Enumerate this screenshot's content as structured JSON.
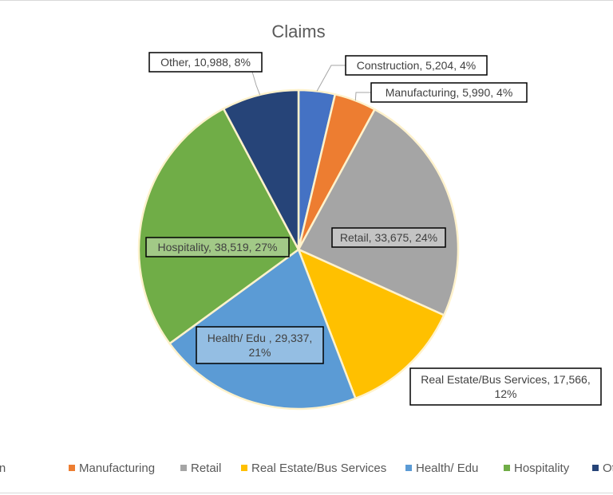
{
  "chart_data": {
    "type": "pie",
    "title": "Claims",
    "slices": [
      {
        "name": "Construction",
        "value": 5204,
        "percent": 4,
        "color": "#4472c4",
        "label_lines": [
          "Construction, 5,204, 4%"
        ]
      },
      {
        "name": "Manufacturing",
        "value": 5990,
        "percent": 4,
        "color": "#ed7d31",
        "label_lines": [
          "Manufacturing, 5,990, 4%"
        ]
      },
      {
        "name": "Retail",
        "value": 33675,
        "percent": 24,
        "color": "#a5a5a5",
        "label_lines": [
          "Retail, 33,675, 24%"
        ]
      },
      {
        "name": "Real Estate/Bus Services",
        "value": 17566,
        "percent": 12,
        "color": "#ffc000",
        "label_lines": [
          "Real Estate/Bus Services, 17,566,",
          "12%"
        ]
      },
      {
        "name": "Health/ Edu",
        "value": 29337,
        "percent": 21,
        "color": "#5b9bd5",
        "label_lines": [
          "Health/ Edu , 29,337,",
          "21%"
        ]
      },
      {
        "name": "Hospitality",
        "value": 38519,
        "percent": 27,
        "color": "#70ad47",
        "label_lines": [
          "Hospitality, 38,519, 27%"
        ]
      },
      {
        "name": "Other",
        "value": 10988,
        "percent": 8,
        "color": "#264478",
        "label_lines": [
          "Other, 10,988, 8%"
        ]
      }
    ],
    "legend": {
      "position": "bottom",
      "entries": [
        "Construction",
        "Manufacturing",
        "Retail",
        "Real Estate/Bus Services",
        "Health/ Edu",
        "Hospitality",
        "Other"
      ]
    }
  }
}
